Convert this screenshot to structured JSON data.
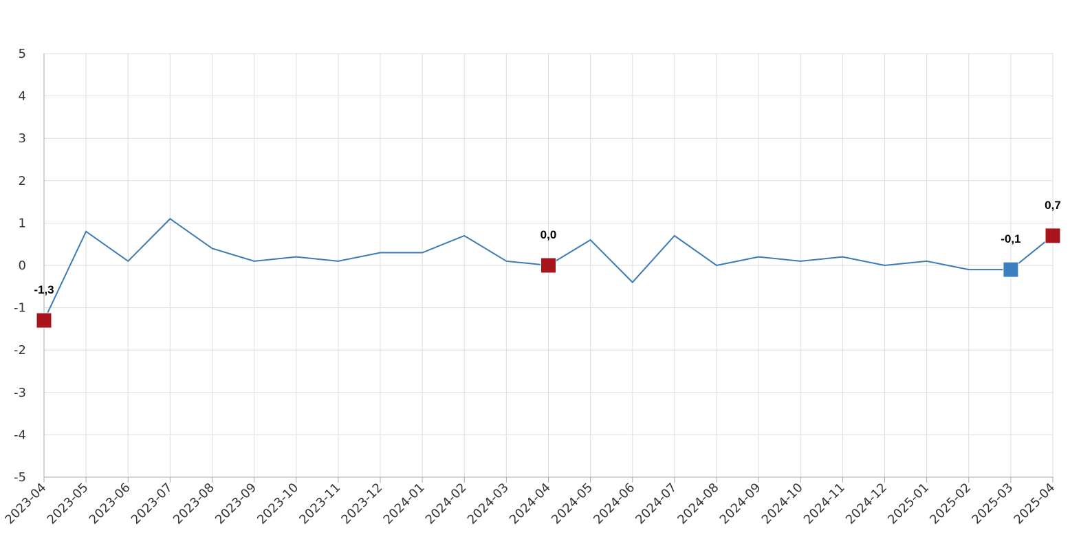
{
  "chart_data": {
    "type": "line",
    "categories": [
      "2023-04",
      "2023-05",
      "2023-06",
      "2023-07",
      "2023-08",
      "2023-09",
      "2023-10",
      "2023-11",
      "2023-12",
      "2024-01",
      "2024-02",
      "2024-03",
      "2024-04",
      "2024-05",
      "2024-06",
      "2024-07",
      "2024-08",
      "2024-09",
      "2024-10",
      "2024-11",
      "2024-12",
      "2025-01",
      "2025-02",
      "2025-03",
      "2025-04"
    ],
    "values": [
      -1.3,
      0.8,
      0.1,
      1.1,
      0.4,
      0.1,
      0.2,
      0.1,
      0.3,
      0.3,
      0.7,
      0.1,
      0.0,
      0.6,
      -0.4,
      0.7,
      0.0,
      0.2,
      0.1,
      0.2,
      0.0,
      0.1,
      -0.1,
      -0.1,
      0.7
    ],
    "value_labels": [
      "-1,3",
      null,
      null,
      null,
      null,
      null,
      null,
      null,
      null,
      null,
      null,
      null,
      "0,0",
      null,
      null,
      null,
      null,
      null,
      null,
      null,
      null,
      null,
      null,
      "-0,1",
      "0,7"
    ],
    "marker_colors": [
      "#a8141c",
      null,
      null,
      null,
      null,
      null,
      null,
      null,
      null,
      null,
      null,
      null,
      "#a8141c",
      null,
      null,
      null,
      null,
      null,
      null,
      null,
      null,
      null,
      null,
      "#3a80c0",
      "#a8141c"
    ],
    "color": "#3a7ab5",
    "ylim": [
      -5,
      5
    ],
    "yticks": [
      -5,
      -4,
      -3,
      -2,
      -1,
      0,
      1,
      2,
      3,
      4,
      5
    ],
    "grid": true
  }
}
